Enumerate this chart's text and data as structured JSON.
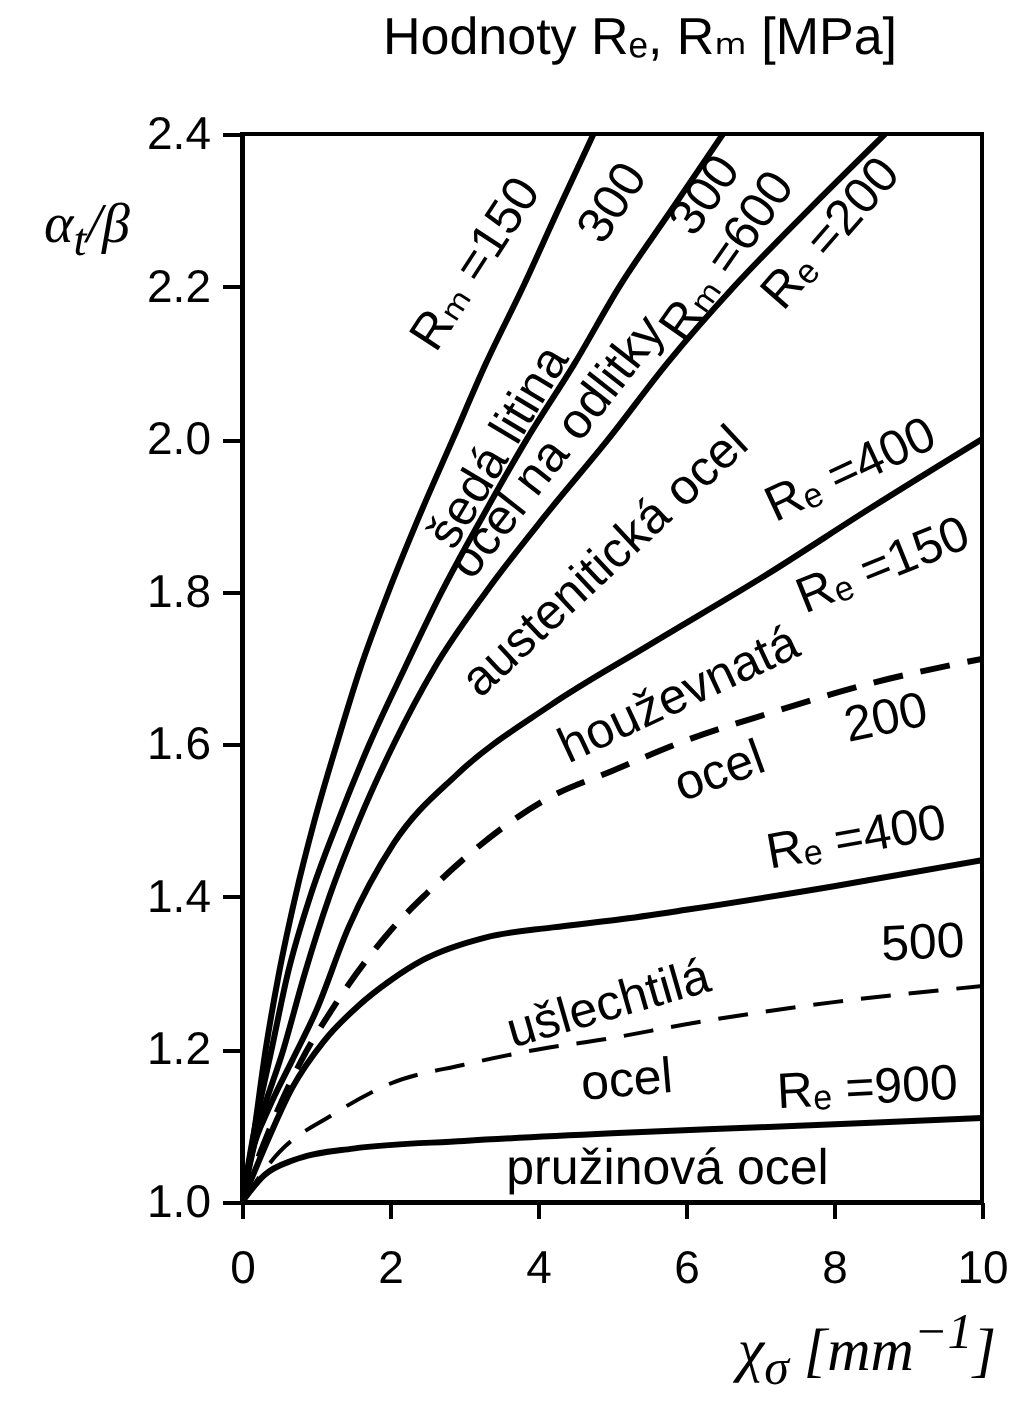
{
  "chart_data": {
    "type": "line",
    "title": "Hodnoty Rₑ, Rₘ [MPa]",
    "xlabel": "χ$_{σ}$ [mm$^{−1}$]",
    "ylabel": "α$_{t}$/β",
    "xlim": [
      0,
      10
    ],
    "ylim": [
      1.0,
      2.4
    ],
    "xticks": [
      0,
      2,
      4,
      6,
      8,
      10
    ],
    "yticks": [
      {
        "value": 1.0,
        "label": "1.0"
      },
      1.2,
      1.4,
      1.6,
      1.8,
      {
        "value": 2.0,
        "label": "2.0"
      },
      2.2,
      2.4
    ],
    "series": [
      {
        "color": "#000000",
        "x": [
          0,
          0.13,
          0.32,
          0.5,
          0.72,
          0.98,
          1.28,
          1.6,
          1.98,
          2.4,
          2.85,
          3.3,
          3.8,
          4.27,
          4.75
        ],
        "values": [
          1.0,
          1.07,
          1.2,
          1.3,
          1.4,
          1.5,
          1.6,
          1.7,
          1.8,
          1.9,
          2.0,
          2.1,
          2.2,
          2.3,
          2.4
        ]
      },
      {
        "color": "#000000",
        "x": [
          0,
          0.14,
          0.4,
          0.62,
          0.92,
          1.3,
          1.72,
          2.2,
          2.7,
          3.26,
          3.85,
          4.5,
          5.1,
          5.8,
          6.5
        ],
        "values": [
          1.0,
          1.08,
          1.2,
          1.3,
          1.4,
          1.5,
          1.6,
          1.7,
          1.8,
          1.9,
          2.0,
          2.1,
          2.2,
          2.3,
          2.4
        ]
      },
      {
        "color": "#000000",
        "x": [
          0,
          0.2,
          0.56,
          0.85,
          1.18,
          1.58,
          2.05,
          2.6,
          3.3,
          4.1,
          4.95,
          5.75,
          6.65,
          7.65,
          8.69
        ],
        "values": [
          1.0,
          1.09,
          1.2,
          1.3,
          1.4,
          1.5,
          1.6,
          1.7,
          1.8,
          1.9,
          2.0,
          2.1,
          2.2,
          2.3,
          2.4
        ]
      },
      {
        "color": "#000000",
        "x": [
          0,
          0.15,
          0.35,
          0.68,
          1.0,
          1.44,
          2.05,
          2.9,
          4.15,
          5.5,
          7.1,
          8.5,
          10
        ],
        "values": [
          1.0,
          1.07,
          1.12,
          1.186,
          1.25,
          1.36,
          1.47,
          1.56,
          1.65,
          1.73,
          1.823,
          1.91,
          2.0
        ]
      },
      {
        "color": "#000000",
        "line_style": "dashed",
        "x": [
          0,
          0.35,
          0.8,
          1.2,
          2,
          2.5,
          3,
          4.15,
          5,
          6,
          7.1,
          8.5,
          10
        ],
        "values": [
          1.0,
          1.09,
          1.185,
          1.25,
          1.355,
          1.405,
          1.45,
          1.53,
          1.565,
          1.605,
          1.64,
          1.68,
          1.712
        ]
      },
      {
        "color": "#000000",
        "x": [
          0,
          0.3,
          0.68,
          1.1,
          1.57,
          2,
          2.44,
          3.3,
          4.2,
          5.07,
          6,
          8,
          10
        ],
        "values": [
          1.0,
          1.07,
          1.15,
          1.21,
          1.257,
          1.29,
          1.317,
          1.347,
          1.36,
          1.37,
          1.383,
          1.414,
          1.448
        ]
      },
      {
        "color": "#000000",
        "line_style": "dashed",
        "x": [
          0,
          0.5,
          1.2,
          2,
          3,
          4,
          5,
          6,
          8,
          10
        ],
        "values": [
          1.0,
          1.065,
          1.113,
          1.155,
          1.18,
          1.2,
          1.215,
          1.233,
          1.262,
          1.283
        ]
      },
      {
        "color": "#000000",
        "x": [
          0,
          0.3,
          0.7,
          1.5,
          3,
          5,
          7,
          10
        ],
        "values": [
          1.0,
          1.035,
          1.055,
          1.07,
          1.08,
          1.09,
          1.098,
          1.11
        ]
      }
    ],
    "annotations": [
      "Rₘ =150",
      "šedá litina",
      "300",
      "ocel na odlitky",
      "300",
      "Rₘ =600",
      "Rₑ =200",
      "austenitická ocel",
      "Rₑ =400",
      "Rₑ =150",
      "houževnatá",
      "ocel",
      "200",
      "Rₑ =400",
      "ušlechtilá",
      "500",
      "ocel",
      "Rₑ =900",
      "pružinová ocel"
    ]
  }
}
